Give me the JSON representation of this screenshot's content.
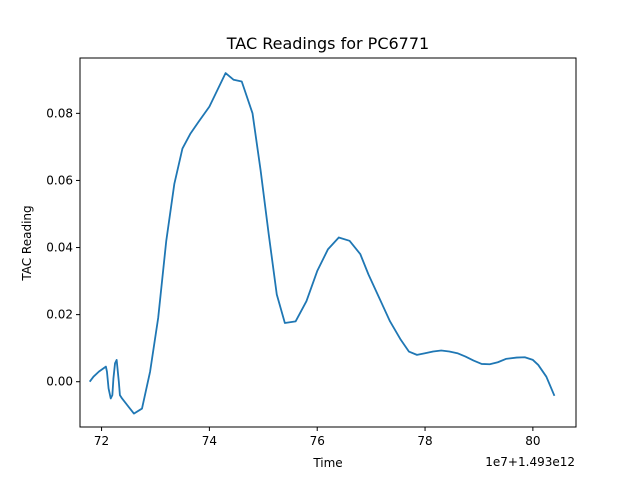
{
  "chart_data": {
    "type": "line",
    "title": "TAC Readings for PC6771",
    "xlabel": "Time",
    "ylabel": "TAC Reading",
    "x_offset_label": "1e7+1.493e12",
    "xlim": [
      71.6,
      80.8
    ],
    "ylim": [
      -0.0135,
      0.0965
    ],
    "x_ticks": [
      72,
      74,
      76,
      78,
      80
    ],
    "x_tick_labels": [
      "72",
      "74",
      "76",
      "78",
      "80"
    ],
    "y_ticks": [
      0.0,
      0.02,
      0.04,
      0.06,
      0.08
    ],
    "y_tick_labels": [
      "0.00",
      "0.02",
      "0.04",
      "0.06",
      "0.08"
    ],
    "grid": false,
    "line_color": "#1f77b4",
    "series": [
      {
        "x": [
          71.78,
          71.85,
          71.95,
          72.08,
          72.1,
          72.13,
          72.17,
          72.2,
          72.22,
          72.25,
          72.28,
          72.32,
          72.34,
          72.38,
          72.6,
          72.75,
          72.9,
          73.05,
          73.2,
          73.35,
          73.5,
          73.65,
          73.8,
          74.0,
          74.15,
          74.3,
          74.45,
          74.6,
          74.8,
          74.95,
          75.1,
          75.25,
          75.4,
          75.6,
          75.8,
          76.0,
          76.2,
          76.4,
          76.6,
          76.8,
          76.95,
          77.15,
          77.35,
          77.55,
          77.7,
          77.85,
          78.0,
          78.15,
          78.3,
          78.45,
          78.6,
          78.75,
          78.9,
          79.05,
          79.2,
          79.35,
          79.5,
          79.7,
          79.85,
          80.0,
          80.1,
          80.25,
          80.4
        ],
        "y": [
          0.0,
          0.0015,
          0.003,
          0.0045,
          0.003,
          -0.002,
          -0.005,
          -0.004,
          0.001,
          0.0055,
          0.0065,
          0.0,
          -0.004,
          -0.005,
          -0.0095,
          -0.008,
          0.003,
          0.019,
          0.042,
          0.059,
          0.0695,
          0.074,
          0.0775,
          0.082,
          0.087,
          0.092,
          0.09,
          0.0895,
          0.08,
          0.063,
          0.044,
          0.026,
          0.0175,
          0.018,
          0.024,
          0.033,
          0.0395,
          0.043,
          0.042,
          0.038,
          0.032,
          0.025,
          0.018,
          0.0125,
          0.009,
          0.008,
          0.0085,
          0.009,
          0.0093,
          0.009,
          0.0085,
          0.0075,
          0.0063,
          0.0053,
          0.0052,
          0.0058,
          0.0068,
          0.0072,
          0.0073,
          0.0065,
          0.005,
          0.0015,
          -0.0042
        ]
      }
    ]
  }
}
